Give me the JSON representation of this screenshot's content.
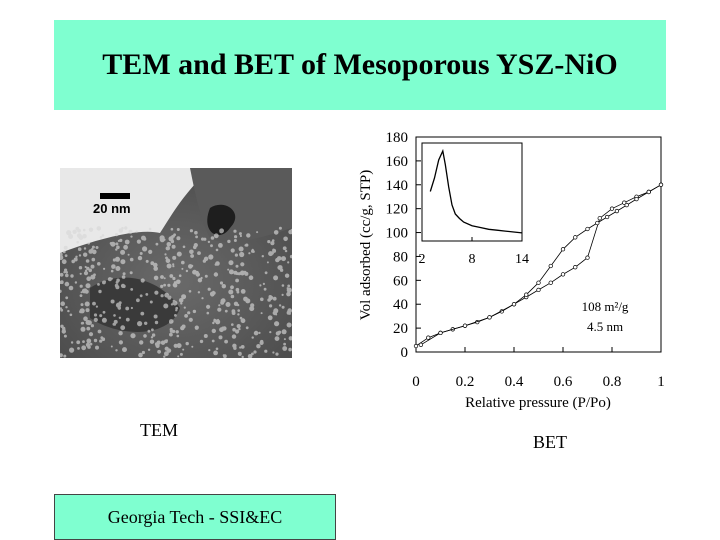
{
  "slide": {
    "title": "TEM and BET of Mesoporous YSZ-NiO",
    "footer": "Georgia Tech -  SSI&EC"
  },
  "tem": {
    "caption": "TEM",
    "scale_label": "20 nm"
  },
  "bet": {
    "caption": "BET",
    "annotation_surface": "108 m²/g",
    "annotation_pore": "4.5 nm"
  },
  "chart_data": [
    {
      "type": "scatter",
      "xlabel": "Relative pressure (P/Po)",
      "ylabel": "Vol adsorbed (cc/g, STP)",
      "xlim": [
        0,
        1
      ],
      "ylim": [
        0,
        180
      ],
      "x_ticks": [
        "0",
        "0.2",
        "0.4",
        "0.6",
        "0.8",
        "1"
      ],
      "y_ticks": [
        "0",
        "20",
        "40",
        "60",
        "80",
        "100",
        "120",
        "140",
        "160",
        "180"
      ],
      "grid": false,
      "series": [
        {
          "x": [
            0.0,
            0.05,
            0.1,
            0.15,
            0.2,
            0.25,
            0.3,
            0.35,
            0.4,
            0.45,
            0.5,
            0.55,
            0.6,
            0.65,
            0.7,
            0.75,
            0.8,
            0.85,
            0.9,
            0.95,
            1.0
          ],
          "y": [
            5,
            12,
            16,
            19,
            22,
            25,
            29,
            34,
            40,
            46,
            52,
            58,
            65,
            71,
            79,
            112,
            120,
            125,
            130,
            134,
            140
          ]
        },
        {
          "x": [
            0.02,
            0.1,
            0.2,
            0.3,
            0.4,
            0.45,
            0.5,
            0.55,
            0.6,
            0.65,
            0.7,
            0.74,
            0.78,
            0.82,
            0.86,
            0.9,
            0.95,
            1.0
          ],
          "y": [
            6,
            16,
            22,
            29,
            40,
            48,
            58,
            72,
            86,
            96,
            103,
            108,
            113,
            118,
            123,
            128,
            134,
            140
          ]
        }
      ]
    },
    {
      "type": "line",
      "xlim": [
        2,
        14
      ],
      "x_ticks": [
        "2",
        "8",
        "14"
      ],
      "series": [
        {
          "x": [
            3.0,
            3.5,
            4.0,
            4.5,
            4.8,
            5.2,
            5.6,
            6.0,
            6.5,
            7.0,
            8.0,
            9.0,
            10.0,
            11.0,
            12.0,
            13.0,
            14.0
          ],
          "y": [
            0.55,
            0.7,
            0.9,
            1.0,
            0.85,
            0.6,
            0.4,
            0.3,
            0.25,
            0.21,
            0.17,
            0.15,
            0.13,
            0.12,
            0.11,
            0.1,
            0.09
          ]
        }
      ]
    }
  ]
}
